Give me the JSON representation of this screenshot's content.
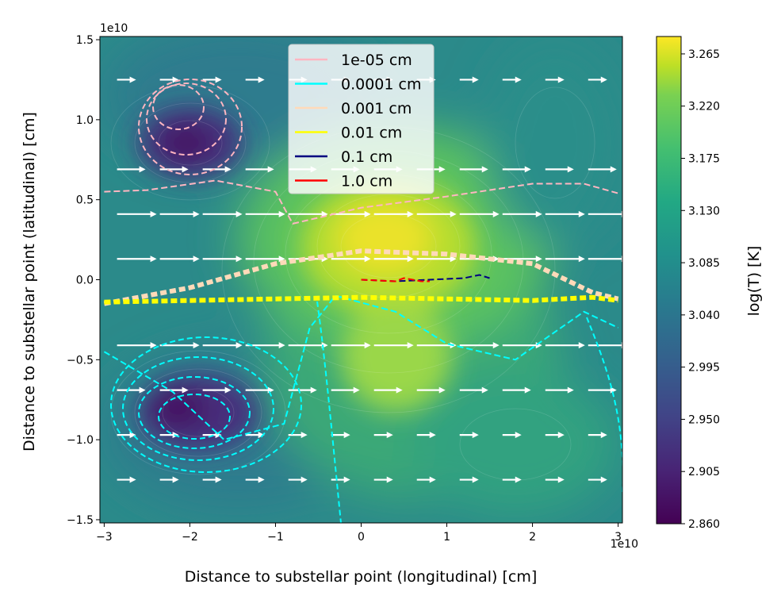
{
  "chart_data": {
    "type": "heatmap",
    "xlabel": "Distance to substellar point (longitudinal) [cm]",
    "ylabel": "Distance to substellar point (latitudinal) [cm]",
    "x_offset_label": "1e10",
    "y_offset_label": "1e10",
    "xlim": [
      -30500000000.0,
      30500000000.0
    ],
    "ylim": [
      -15200000000.0,
      15200000000.0
    ],
    "x_ticks": [
      -3,
      -2,
      -1,
      0,
      1,
      2,
      3
    ],
    "x_tick_labels": [
      "−3",
      "−2",
      "−1",
      "0",
      "1",
      "2",
      "3"
    ],
    "y_ticks": [
      -1.5,
      -1.0,
      -0.5,
      0.0,
      0.5,
      1.0,
      1.5
    ],
    "y_tick_labels": [
      "−1.5",
      "−1.0",
      "−0.5",
      "0.0",
      "0.5",
      "1.0",
      "1.5"
    ],
    "colorbar": {
      "label": "log(T) [K]",
      "colormap": "viridis",
      "range": [
        2.86,
        3.28
      ],
      "ticks": [
        2.86,
        2.905,
        2.95,
        2.995,
        3.04,
        3.085,
        3.13,
        3.175,
        3.22,
        3.265
      ],
      "tick_labels": [
        "2.860",
        "2.905",
        "2.950",
        "2.995",
        "3.040",
        "3.085",
        "3.130",
        "3.175",
        "3.220",
        "3.265"
      ]
    },
    "legend": {
      "placement": "upper center",
      "entries": [
        {
          "label": "1e-05 cm",
          "color": "#ffb6c1"
        },
        {
          "label": "0.0001 cm",
          "color": "#00ffff"
        },
        {
          "label": "0.001 cm",
          "color": "#ffdab9"
        },
        {
          "label": "0.01 cm",
          "color": "#ffff00"
        },
        {
          "label": "0.1 cm",
          "color": "#000080"
        },
        {
          "label": "1.0 cm",
          "color": "#ff0000"
        }
      ]
    },
    "temperature_features": [
      {
        "kind": "hot",
        "x": 0.3,
        "y": 0.15,
        "value": 3.26
      },
      {
        "kind": "cold",
        "x": -2.0,
        "y": 0.85,
        "value": 2.87
      },
      {
        "kind": "cold",
        "x": -2.0,
        "y": -0.9,
        "value": 2.88
      }
    ],
    "wind_rows_y": [
      1.25,
      0.69,
      0.41,
      0.13,
      -0.41,
      -0.69,
      -0.97,
      -1.25
    ],
    "series": [
      {
        "name": "1e-05 cm",
        "color": "#ffb6c1",
        "x": [
          -3.0,
          -2.5,
          -1.7,
          -1.0,
          -0.8,
          0.0,
          1.0,
          2.0,
          2.6,
          3.0
        ],
        "y": [
          0.55,
          0.56,
          0.62,
          0.55,
          0.35,
          0.45,
          0.52,
          0.6,
          0.6,
          0.54
        ]
      },
      {
        "name": "0.0001 cm",
        "color": "#00ffff",
        "x": [
          -3.0,
          -2.2,
          -1.6,
          -0.9,
          -0.6,
          -0.3,
          0.4,
          1.0,
          1.8,
          2.6,
          3.0
        ],
        "y": [
          -0.45,
          -0.7,
          -1.0,
          -0.9,
          -0.3,
          -0.1,
          -0.2,
          -0.4,
          -0.5,
          -0.2,
          -0.3
        ]
      },
      {
        "name": "0.001 cm",
        "color": "#ffdab9",
        "x": [
          -3.0,
          -2.0,
          -1.0,
          0.0,
          1.0,
          2.0,
          2.7,
          3.0
        ],
        "y": [
          -0.15,
          -0.05,
          0.1,
          0.18,
          0.16,
          0.1,
          -0.08,
          -0.12
        ]
      },
      {
        "name": "0.01 cm",
        "color": "#ffff00",
        "x": [
          -3.0,
          -2.0,
          -1.0,
          0.0,
          1.0,
          2.0,
          2.7,
          3.0
        ],
        "y": [
          -0.14,
          -0.13,
          -0.12,
          -0.11,
          -0.12,
          -0.13,
          -0.11,
          -0.13
        ]
      },
      {
        "name": "0.1 cm",
        "color": "#000080",
        "x": [
          0.0,
          0.4,
          0.8,
          1.2,
          1.38,
          1.5
        ],
        "y": [
          0.0,
          -0.01,
          0.0,
          0.01,
          0.03,
          0.01
        ]
      },
      {
        "name": "1.0 cm",
        "color": "#ff0000",
        "x": [
          0.0,
          0.2,
          0.4,
          0.5,
          0.7,
          0.8
        ],
        "y": [
          0.0,
          -0.005,
          -0.01,
          0.01,
          -0.01,
          -0.01
        ]
      }
    ]
  }
}
